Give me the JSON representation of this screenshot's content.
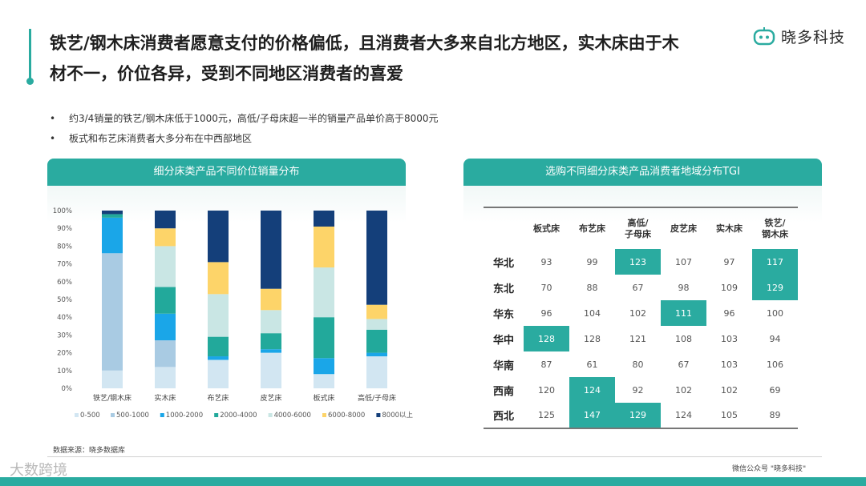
{
  "header": {
    "title": "铁艺/钢木床消费者愿意支付的价格偏低，且消费者大多来自北方地区，实木床由于木材不一，价位各异，受到不同地区消费者的喜爱",
    "logo_text": "晓多科技"
  },
  "bullets": [
    "约3/4销量的铁艺/钢木床低于1000元，高低/子母床超一半的销量产品单价高于8000元",
    "板式和布艺床消费者大多分布在中西部地区"
  ],
  "left_panel": {
    "title": "细分床类产品不同价位销量分布"
  },
  "right_panel": {
    "title": "选购不同细分床类产品消费者地域分布TGI"
  },
  "chart_data": [
    {
      "type": "bar",
      "stacked": true,
      "title": "细分床类产品不同价位销量分布",
      "categories": [
        "铁艺/钢木床",
        "实木床",
        "布艺床",
        "皮艺床",
        "板式床",
        "高低/子母床"
      ],
      "ylim": [
        0,
        100
      ],
      "yticks": [
        "0%",
        "10%",
        "20%",
        "30%",
        "40%",
        "50%",
        "60%",
        "70%",
        "80%",
        "90%",
        "100%"
      ],
      "legend_position": "bottom",
      "series": [
        {
          "name": "0-500",
          "color": "#d2e6f2",
          "values": [
            10,
            12,
            16,
            20,
            8,
            18
          ]
        },
        {
          "name": "500-1000",
          "color": "#a9cbe3",
          "values": [
            66,
            15,
            0,
            0,
            0,
            0
          ]
        },
        {
          "name": "1000-2000",
          "color": "#1aa6e8",
          "values": [
            20,
            15,
            2,
            2,
            9,
            2
          ]
        },
        {
          "name": "2000-4000",
          "color": "#22a99b",
          "values": [
            2,
            15,
            11,
            9,
            23,
            13
          ]
        },
        {
          "name": "4000-6000",
          "color": "#c9e6e4",
          "values": [
            0,
            23,
            24,
            13,
            28,
            6
          ]
        },
        {
          "name": "6000-8000",
          "color": "#fdd469",
          "values": [
            0,
            10,
            18,
            12,
            23,
            8
          ]
        },
        {
          "name": "8000以上",
          "color": "#143f7a",
          "values": [
            2,
            10,
            29,
            44,
            9,
            53
          ]
        }
      ]
    },
    {
      "type": "table",
      "title": "选购不同细分床类产品消费者地域分布TGI",
      "columns": [
        "板式床",
        "布艺床",
        "高低/\n子母床",
        "皮艺床",
        "实木床",
        "铁艺/\n钢木床"
      ],
      "rows": [
        {
          "region": "华北",
          "values": [
            93,
            99,
            123,
            107,
            97,
            117
          ],
          "highlight": [
            2,
            5
          ]
        },
        {
          "region": "东北",
          "values": [
            70,
            88,
            67,
            98,
            109,
            129
          ],
          "highlight": [
            5
          ]
        },
        {
          "region": "华东",
          "values": [
            96,
            104,
            102,
            111,
            96,
            100
          ],
          "highlight": [
            3
          ]
        },
        {
          "region": "华中",
          "values": [
            128,
            128,
            121,
            108,
            103,
            94
          ],
          "highlight": [
            0
          ]
        },
        {
          "region": "华南",
          "values": [
            87,
            61,
            80,
            67,
            103,
            106
          ],
          "highlight": []
        },
        {
          "region": "西南",
          "values": [
            120,
            124,
            92,
            102,
            102,
            69
          ],
          "highlight": [
            1
          ]
        },
        {
          "region": "西北",
          "values": [
            125,
            147,
            129,
            124,
            105,
            89
          ],
          "highlight": [
            1,
            2
          ]
        }
      ]
    }
  ],
  "footer": {
    "source": "数据来源：晓多数据库",
    "watermark": "大数跨境",
    "right_text": "微信公众号 \"晓多科技\""
  },
  "colors": {
    "accent": "#2aaba0"
  }
}
